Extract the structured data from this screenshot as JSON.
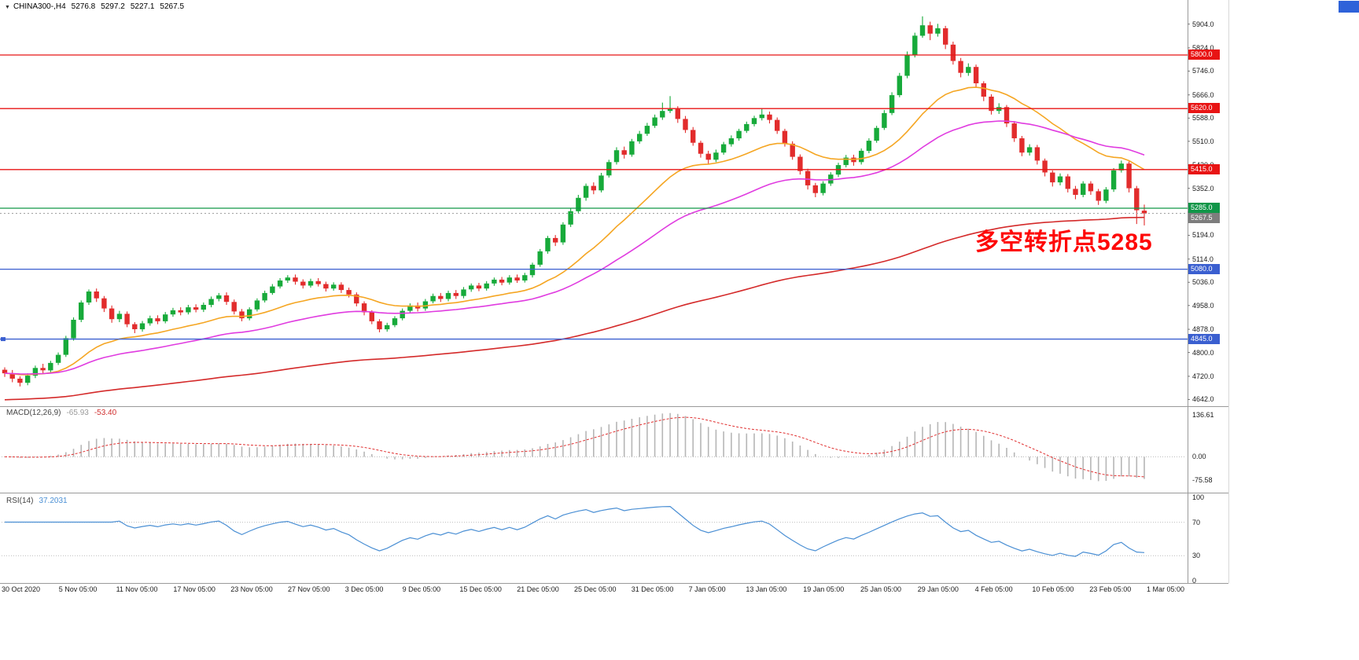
{
  "header": {
    "marker": "▼",
    "title": "CHINA300-,H4",
    "open": "5276.8",
    "high": "5297.2",
    "low": "5227.1",
    "close": "5267.5"
  },
  "annotation": {
    "text": "多空转折点5285",
    "color": "#fe0808"
  },
  "corner_badge": {
    "color": "#2e62d9"
  },
  "macd_panel": {
    "label": "MACD(12,26,9)",
    "value_main": "-65.93",
    "value_signal": "-53.40",
    "axis_labels": [
      "136.61",
      "0.00",
      "-75.58"
    ],
    "axis_values": [
      136.61,
      0,
      -75.58
    ]
  },
  "rsi_panel": {
    "label": "RSI(14)",
    "value": "37.2031",
    "axis_labels": [
      "100",
      "70",
      "30",
      "0"
    ],
    "axis_values": [
      100,
      70,
      30,
      0
    ],
    "levels": [
      70,
      30
    ]
  },
  "chart_data": {
    "type": "candlestick",
    "title": "CHINA300- H4",
    "ylim": [
      4622,
      5985
    ],
    "up_color": "#17aa3a",
    "down_color": "#e22c2c",
    "price_ticks": [
      "5904.0",
      "5824.0",
      "5746.0",
      "5666.0",
      "5588.0",
      "5510.0",
      "5430.0",
      "5352.0",
      "5272.0",
      "5194.0",
      "5114.0",
      "5036.0",
      "4958.0",
      "4878.0",
      "4800.0",
      "4720.0",
      "4642.0"
    ],
    "time_labels": [
      "30 Oct 2020",
      "5 Nov 05:00",
      "11 Nov 05:00",
      "17 Nov 05:00",
      "23 Nov 05:00",
      "27 Nov 05:00",
      "3 Dec 05:00",
      "9 Dec 05:00",
      "15 Dec 05:00",
      "21 Dec 05:00",
      "25 Dec 05:00",
      "31 Dec 05:00",
      "7 Jan 05:00",
      "13 Jan 05:00",
      "19 Jan 05:00",
      "25 Jan 05:00",
      "29 Jan 05:00",
      "4 Feb 05:00",
      "10 Feb 05:00",
      "23 Feb 05:00",
      "1 Mar 05:00"
    ],
    "hlines": [
      {
        "price": 5800.0,
        "label": "5800.0",
        "color": "#e81414",
        "kind": "resistance"
      },
      {
        "price": 5620.0,
        "label": "5620.0",
        "color": "#e81414",
        "kind": "resistance"
      },
      {
        "price": 5415.0,
        "label": "5415.0",
        "color": "#e81414",
        "kind": "resistance"
      },
      {
        "price": 5285.0,
        "label": "5285.0",
        "color": "#109648",
        "kind": "pivot"
      },
      {
        "price": 5080.0,
        "label": "5080.0",
        "color": "#3a5fd0",
        "kind": "support"
      },
      {
        "price": 4845.0,
        "label": "4845.0",
        "color": "#3a5fd0",
        "kind": "support"
      }
    ],
    "last_price": {
      "value": 5267.5,
      "label": "5267.5",
      "tag_color": "#7d7d7d"
    },
    "moving_averages": [
      {
        "name": "fast",
        "period": 21,
        "color": "#f5a623"
      },
      {
        "name": "mid",
        "period": 45,
        "color": "#e03ce0"
      },
      {
        "name": "slow",
        "period": 160,
        "color": "#d42a2a",
        "seed_offset": -90
      }
    ],
    "indicators": [
      {
        "type": "macd",
        "params": [
          12,
          26,
          9
        ]
      },
      {
        "type": "rsi",
        "params": [
          14
        ]
      }
    ],
    "ohlc": [
      [
        4742,
        4750,
        4718,
        4730
      ],
      [
        4730,
        4741,
        4700,
        4712
      ],
      [
        4712,
        4720,
        4686,
        4698
      ],
      [
        4698,
        4730,
        4690,
        4722
      ],
      [
        4722,
        4756,
        4714,
        4748
      ],
      [
        4748,
        4762,
        4728,
        4740
      ],
      [
        4740,
        4772,
        4732,
        4765
      ],
      [
        4765,
        4800,
        4758,
        4792
      ],
      [
        4792,
        4856,
        4785,
        4848
      ],
      [
        4848,
        4918,
        4840,
        4910
      ],
      [
        4910,
        4975,
        4902,
        4968
      ],
      [
        4968,
        5012,
        4960,
        5005
      ],
      [
        5005,
        5015,
        4970,
        4982
      ],
      [
        4982,
        4990,
        4936,
        4948
      ],
      [
        4948,
        4958,
        4900,
        4912
      ],
      [
        4912,
        4940,
        4902,
        4930
      ],
      [
        4930,
        4938,
        4885,
        4895
      ],
      [
        4895,
        4902,
        4865,
        4878
      ],
      [
        4878,
        4906,
        4870,
        4898
      ],
      [
        4898,
        4924,
        4890,
        4915
      ],
      [
        4915,
        4925,
        4895,
        4905
      ],
      [
        4905,
        4936,
        4898,
        4928
      ],
      [
        4928,
        4950,
        4920,
        4942
      ],
      [
        4942,
        4952,
        4925,
        4935
      ],
      [
        4935,
        4960,
        4928,
        4952
      ],
      [
        4952,
        4962,
        4935,
        4944
      ],
      [
        4944,
        4968,
        4936,
        4960
      ],
      [
        4960,
        4988,
        4952,
        4980
      ],
      [
        4980,
        5000,
        4972,
        4992
      ],
      [
        4992,
        5002,
        4960,
        4970
      ],
      [
        4970,
        4978,
        4928,
        4938
      ],
      [
        4938,
        4946,
        4905,
        4915
      ],
      [
        4915,
        4952,
        4908,
        4945
      ],
      [
        4945,
        4982,
        4938,
        4975
      ],
      [
        4975,
        5008,
        4968,
        5000
      ],
      [
        5000,
        5030,
        4994,
        5022
      ],
      [
        5022,
        5050,
        5015,
        5042
      ],
      [
        5042,
        5060,
        5034,
        5052
      ],
      [
        5052,
        5062,
        5028,
        5038
      ],
      [
        5038,
        5046,
        5015,
        5025
      ],
      [
        5025,
        5048,
        5018,
        5040
      ],
      [
        5040,
        5050,
        5022,
        5030
      ],
      [
        5030,
        5038,
        5005,
        5015
      ],
      [
        5015,
        5036,
        5008,
        5028
      ],
      [
        5028,
        5036,
        5000,
        5010
      ],
      [
        5010,
        5018,
        4985,
        4995
      ],
      [
        4995,
        5002,
        4955,
        4965
      ],
      [
        4965,
        4972,
        4925,
        4935
      ],
      [
        4935,
        4942,
        4895,
        4905
      ],
      [
        4905,
        4912,
        4868,
        4878
      ],
      [
        4878,
        4900,
        4870,
        4892
      ],
      [
        4892,
        4922,
        4885,
        4915
      ],
      [
        4915,
        4948,
        4908,
        4940
      ],
      [
        4940,
        4965,
        4932,
        4958
      ],
      [
        4958,
        4968,
        4938,
        4948
      ],
      [
        4948,
        4980,
        4940,
        4972
      ],
      [
        4972,
        4998,
        4965,
        4990
      ],
      [
        4990,
        5000,
        4970,
        4980
      ],
      [
        4980,
        5008,
        4972,
        5000
      ],
      [
        5000,
        5010,
        4980,
        4990
      ],
      [
        4990,
        5020,
        4982,
        5012
      ],
      [
        5012,
        5032,
        5004,
        5025
      ],
      [
        5025,
        5034,
        5006,
        5015
      ],
      [
        5015,
        5040,
        5008,
        5032
      ],
      [
        5032,
        5052,
        5024,
        5045
      ],
      [
        5045,
        5054,
        5026,
        5035
      ],
      [
        5035,
        5060,
        5028,
        5052
      ],
      [
        5052,
        5062,
        5034,
        5042
      ],
      [
        5042,
        5068,
        5035,
        5060
      ],
      [
        5060,
        5102,
        5052,
        5095
      ],
      [
        5095,
        5148,
        5088,
        5140
      ],
      [
        5140,
        5192,
        5132,
        5185
      ],
      [
        5185,
        5195,
        5158,
        5170
      ],
      [
        5170,
        5238,
        5162,
        5230
      ],
      [
        5230,
        5284,
        5222,
        5275
      ],
      [
        5275,
        5330,
        5268,
        5320
      ],
      [
        5320,
        5368,
        5310,
        5360
      ],
      [
        5360,
        5372,
        5332,
        5345
      ],
      [
        5345,
        5404,
        5338,
        5395
      ],
      [
        5395,
        5448,
        5388,
        5440
      ],
      [
        5440,
        5490,
        5432,
        5480
      ],
      [
        5480,
        5492,
        5452,
        5465
      ],
      [
        5465,
        5518,
        5458,
        5510
      ],
      [
        5510,
        5545,
        5502,
        5535
      ],
      [
        5535,
        5572,
        5528,
        5562
      ],
      [
        5562,
        5600,
        5555,
        5590
      ],
      [
        5590,
        5640,
        5582,
        5612
      ],
      [
        5612,
        5662,
        5605,
        5618
      ],
      [
        5618,
        5628,
        5572,
        5585
      ],
      [
        5585,
        5595,
        5538,
        5548
      ],
      [
        5548,
        5558,
        5495,
        5505
      ],
      [
        5505,
        5512,
        5455,
        5468
      ],
      [
        5468,
        5478,
        5432,
        5448
      ],
      [
        5448,
        5482,
        5440,
        5472
      ],
      [
        5472,
        5508,
        5465,
        5500
      ],
      [
        5500,
        5530,
        5492,
        5520
      ],
      [
        5520,
        5552,
        5512,
        5545
      ],
      [
        5545,
        5576,
        5538,
        5568
      ],
      [
        5568,
        5596,
        5560,
        5588
      ],
      [
        5588,
        5620,
        5580,
        5600
      ],
      [
        5600,
        5610,
        5570,
        5582
      ],
      [
        5582,
        5590,
        5535,
        5545
      ],
      [
        5545,
        5552,
        5492,
        5502
      ],
      [
        5502,
        5510,
        5448,
        5458
      ],
      [
        5458,
        5466,
        5398,
        5410
      ],
      [
        5410,
        5418,
        5348,
        5362
      ],
      [
        5362,
        5370,
        5322,
        5336
      ],
      [
        5336,
        5376,
        5328,
        5368
      ],
      [
        5368,
        5406,
        5360,
        5398
      ],
      [
        5398,
        5438,
        5390,
        5430
      ],
      [
        5430,
        5464,
        5422,
        5455
      ],
      [
        5455,
        5465,
        5428,
        5440
      ],
      [
        5440,
        5486,
        5432,
        5478
      ],
      [
        5478,
        5520,
        5470,
        5512
      ],
      [
        5512,
        5562,
        5505,
        5555
      ],
      [
        5555,
        5615,
        5548,
        5605
      ],
      [
        5605,
        5675,
        5598,
        5665
      ],
      [
        5665,
        5740,
        5658,
        5730
      ],
      [
        5730,
        5812,
        5722,
        5800
      ],
      [
        5800,
        5875,
        5792,
        5865
      ],
      [
        5865,
        5930,
        5858,
        5900
      ],
      [
        5900,
        5912,
        5850,
        5872
      ],
      [
        5872,
        5905,
        5862,
        5890
      ],
      [
        5890,
        5898,
        5820,
        5835
      ],
      [
        5835,
        5845,
        5768,
        5780
      ],
      [
        5780,
        5790,
        5725,
        5740
      ],
      [
        5740,
        5772,
        5730,
        5760
      ],
      [
        5760,
        5768,
        5692,
        5705
      ],
      [
        5705,
        5712,
        5645,
        5660
      ],
      [
        5660,
        5668,
        5600,
        5612
      ],
      [
        5612,
        5638,
        5602,
        5625
      ],
      [
        5625,
        5632,
        5558,
        5570
      ],
      [
        5570,
        5578,
        5508,
        5520
      ],
      [
        5520,
        5528,
        5460,
        5472
      ],
      [
        5472,
        5500,
        5462,
        5490
      ],
      [
        5490,
        5498,
        5432,
        5445
      ],
      [
        5445,
        5452,
        5392,
        5405
      ],
      [
        5405,
        5412,
        5358,
        5372
      ],
      [
        5372,
        5402,
        5362,
        5392
      ],
      [
        5392,
        5400,
        5338,
        5350
      ],
      [
        5350,
        5360,
        5315,
        5330
      ],
      [
        5330,
        5376,
        5322,
        5368
      ],
      [
        5368,
        5376,
        5330,
        5342
      ],
      [
        5342,
        5350,
        5296,
        5310
      ],
      [
        5310,
        5356,
        5302,
        5348
      ],
      [
        5348,
        5420,
        5340,
        5412
      ],
      [
        5412,
        5445,
        5405,
        5435
      ],
      [
        5435,
        5442,
        5338,
        5352
      ],
      [
        5352,
        5360,
        5232,
        5278
      ],
      [
        5276.8,
        5297.2,
        5227.1,
        5267.5
      ]
    ]
  }
}
